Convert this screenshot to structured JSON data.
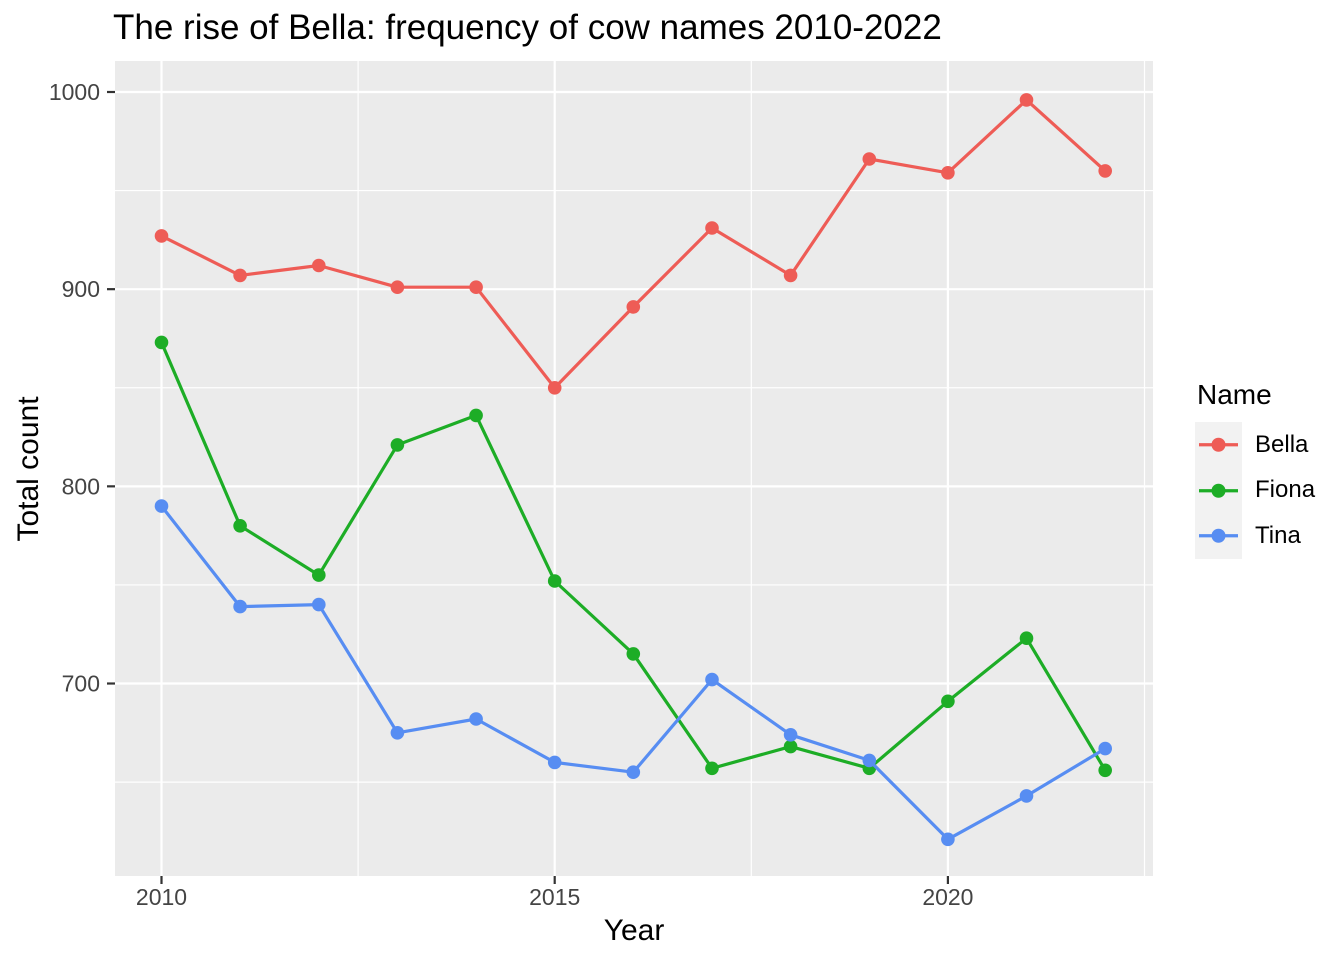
{
  "chart_data": {
    "type": "line",
    "title": "The rise of Bella: frequency of cow names 2010-2022",
    "xlabel": "Year",
    "ylabel": "Total count",
    "legend_title": "Name",
    "legend_position": "right",
    "grid": true,
    "x": [
      2010,
      2011,
      2012,
      2013,
      2014,
      2015,
      2016,
      2017,
      2018,
      2019,
      2020,
      2021,
      2022
    ],
    "series": [
      {
        "name": "Bella",
        "color": "#ee5c56",
        "values": [
          927,
          907,
          912,
          901,
          901,
          850,
          891,
          931,
          907,
          966,
          959,
          996,
          960
        ]
      },
      {
        "name": "Fiona",
        "color": "#1dad26",
        "values": [
          873,
          780,
          755,
          821,
          836,
          752,
          715,
          657,
          668,
          657,
          691,
          723,
          656
        ]
      },
      {
        "name": "Tina",
        "color": "#578df2",
        "values": [
          790,
          739,
          740,
          675,
          682,
          660,
          655,
          702,
          674,
          661,
          621,
          643,
          667
        ]
      }
    ],
    "x_ticks": [
      2010,
      2015,
      2020
    ],
    "x_minor": [
      2012.5,
      2017.5,
      2022.5
    ],
    "y_ticks": [
      700,
      800,
      900,
      1000
    ],
    "y_minor": [
      650,
      750,
      850,
      950
    ],
    "xlim": [
      2009.4,
      2022.6
    ],
    "ylim": [
      602,
      1015
    ],
    "panel_bg": "#ebebeb",
    "grid_color": "#ffffff",
    "tick_label_color": "#444444",
    "axis_tick_color": "#333333",
    "legend_key_bg": "#f2f2f2",
    "text_color": "#000000"
  }
}
